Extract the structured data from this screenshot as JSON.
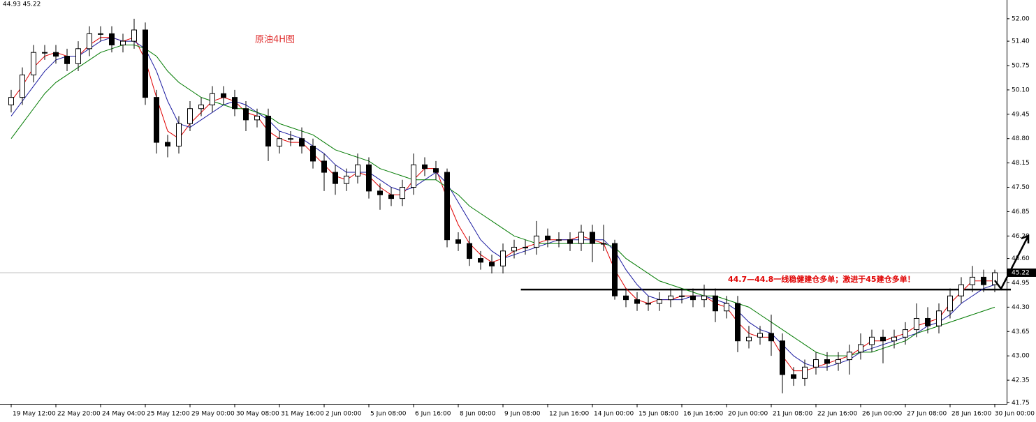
{
  "chart_data": {
    "type": "candlestick",
    "title": "原油4H图",
    "info": "44.93 45.22",
    "annotation": "44.7—44.8一线稳健建仓多单；激进于45建仓多单！",
    "xlim": [
      -1,
      89
    ],
    "ylim": [
      41.7,
      52.5
    ],
    "xticks": [
      {
        "value": 0,
        "label": "19 May 12:00"
      },
      {
        "value": 4,
        "label": "22 May 20:00"
      },
      {
        "value": 8,
        "label": "24 May 04:00"
      },
      {
        "value": 12,
        "label": "25 May 12:00"
      },
      {
        "value": 16,
        "label": "29 May 00:00"
      },
      {
        "value": 20,
        "label": "30 May 08:00"
      },
      {
        "value": 24,
        "label": "31 May 16:00"
      },
      {
        "value": 28,
        "label": "2 Jun 00:00"
      },
      {
        "value": 32,
        "label": "5 Jun 08:00"
      },
      {
        "value": 36,
        "label": "6 Jun 16:00"
      },
      {
        "value": 40,
        "label": "8 Jun 00:00"
      },
      {
        "value": 44,
        "label": "9 Jun 08:00"
      },
      {
        "value": 48,
        "label": "12 Jun 16:00"
      },
      {
        "value": 52,
        "label": "14 Jun 00:00"
      },
      {
        "value": 56,
        "label": "15 Jun 08:00"
      },
      {
        "value": 60,
        "label": "16 Jun 16:00"
      },
      {
        "value": 64,
        "label": "20 Jun 00:00"
      },
      {
        "value": 68,
        "label": "21 Jun 08:00"
      },
      {
        "value": 72,
        "label": "22 Jun 16:00"
      },
      {
        "value": 76,
        "label": "26 Jun 00:00"
      },
      {
        "value": 80,
        "label": "27 Jun 08:00"
      },
      {
        "value": 84,
        "label": "28 Jun 16:00"
      },
      {
        "value": 88,
        "label": "30 Jun 00:00"
      }
    ],
    "yticks": [
      {
        "value": 52,
        "label": "52.00"
      },
      {
        "value": 51.4,
        "label": "51.40"
      },
      {
        "value": 50.75,
        "label": "50.75"
      },
      {
        "value": 50.1,
        "label": "50.10"
      },
      {
        "value": 49.45,
        "label": "49.45"
      },
      {
        "value": 48.8,
        "label": "48.80"
      },
      {
        "value": 48.15,
        "label": "48.15"
      },
      {
        "value": 47.5,
        "label": "47.50"
      },
      {
        "value": 46.85,
        "label": "46.85"
      },
      {
        "value": 46.2,
        "label": "46.20"
      },
      {
        "value": 45.6,
        "label": "45.60"
      },
      {
        "value": 44.95,
        "label": "44.95"
      },
      {
        "value": 44.3,
        "label": "44.30"
      },
      {
        "value": 43.65,
        "label": "43.65"
      },
      {
        "value": 43,
        "label": "43.00"
      },
      {
        "value": 42.35,
        "label": "42.35"
      },
      {
        "value": 41.75,
        "label": "41.75"
      }
    ],
    "last_price": {
      "value": 45.22,
      "label": "45.22"
    },
    "support": {
      "level": 44.77,
      "from": 45.6
    },
    "up_color": "#ffffff",
    "down_color": "#000000",
    "open": [
      49.7,
      49.9,
      50.5,
      51.1,
      51.1,
      51.0,
      50.8,
      51.2,
      51.6,
      51.6,
      51.3,
      51.4,
      51.7,
      49.9,
      48.7,
      48.6,
      49.2,
      49.6,
      49.7,
      50.0,
      49.9,
      49.6,
      49.3,
      49.4,
      48.6,
      48.8,
      48.8,
      48.6,
      48.2,
      47.9,
      47.6,
      47.8,
      48.1,
      47.4,
      47.3,
      47.2,
      47.5,
      48.1,
      48.0,
      47.9,
      46.1,
      46.0,
      45.6,
      45.5,
      45.4,
      45.8,
      45.9,
      45.9,
      46.2,
      46.1,
      46.1,
      46.0,
      46.3,
      46.0,
      46.0,
      44.6,
      44.5,
      44.4,
      44.4,
      44.5,
      44.6,
      44.6,
      44.5,
      44.6,
      44.2,
      44.4,
      43.4,
      43.5,
      43.6,
      43.4,
      42.5,
      42.4,
      42.7,
      42.9,
      42.8,
      42.9,
      43.1,
      43.3,
      43.5,
      43.4,
      43.5,
      43.7,
      44.0,
      43.8,
      44.2,
      44.6,
      44.9,
      45.1,
      44.9
    ],
    "high": [
      50.1,
      50.7,
      51.3,
      51.3,
      51.3,
      51.2,
      51.4,
      51.8,
      51.8,
      51.8,
      51.6,
      52.0,
      51.9,
      50.1,
      48.9,
      49.4,
      49.8,
      49.9,
      50.2,
      50.2,
      50.1,
      49.8,
      49.6,
      49.6,
      49.0,
      49.0,
      49.1,
      48.8,
      48.4,
      48.1,
      48.0,
      48.4,
      48.3,
      47.6,
      47.5,
      47.7,
      48.4,
      48.3,
      48.2,
      48.0,
      46.3,
      46.2,
      45.8,
      45.7,
      46.0,
      46.1,
      46.1,
      46.6,
      46.4,
      46.3,
      46.3,
      46.5,
      46.5,
      46.5,
      46.1,
      44.8,
      44.7,
      44.6,
      44.7,
      44.8,
      44.8,
      44.8,
      44.9,
      44.8,
      44.6,
      44.6,
      43.8,
      43.8,
      44.1,
      43.6,
      42.7,
      42.9,
      43.1,
      43.1,
      43.1,
      43.3,
      43.6,
      43.7,
      43.7,
      43.7,
      43.9,
      44.4,
      44.3,
      44.4,
      44.8,
      45.1,
      45.4,
      45.3,
      45.3
    ],
    "low": [
      49.5,
      49.7,
      50.3,
      50.9,
      50.8,
      50.6,
      50.6,
      51.0,
      51.4,
      51.1,
      51.1,
      51.2,
      49.7,
      48.4,
      48.3,
      48.4,
      49.0,
      49.4,
      49.5,
      49.7,
      49.4,
      49.0,
      49.1,
      48.2,
      48.4,
      48.6,
      48.4,
      48.0,
      47.4,
      47.3,
      47.4,
      47.6,
      47.2,
      46.9,
      47.0,
      47.0,
      47.3,
      47.8,
      47.7,
      45.9,
      45.8,
      45.4,
      45.3,
      45.2,
      45.2,
      45.6,
      45.7,
      45.7,
      45.9,
      45.9,
      45.8,
      45.8,
      45.5,
      45.8,
      44.5,
      44.3,
      44.2,
      44.2,
      44.2,
      44.3,
      44.4,
      44.3,
      44.3,
      43.9,
      44.0,
      43.1,
      43.2,
      43.3,
      43.0,
      42.0,
      42.2,
      42.2,
      42.5,
      42.6,
      42.6,
      42.5,
      42.9,
      43.1,
      42.8,
      43.2,
      43.3,
      43.5,
      43.6,
      43.6,
      44.0,
      44.4,
      44.7,
      44.7,
      44.7
    ],
    "close": [
      49.9,
      50.5,
      51.1,
      51.1,
      51.0,
      50.8,
      51.2,
      51.6,
      51.6,
      51.3,
      51.4,
      51.7,
      49.9,
      48.7,
      48.6,
      49.2,
      49.6,
      49.7,
      50.0,
      49.9,
      49.6,
      49.3,
      49.4,
      48.6,
      48.8,
      48.8,
      48.6,
      48.2,
      47.9,
      47.6,
      47.8,
      48.1,
      47.4,
      47.3,
      47.2,
      47.5,
      48.1,
      48.0,
      47.9,
      46.1,
      46.0,
      45.6,
      45.5,
      45.4,
      45.8,
      45.9,
      45.9,
      46.2,
      46.1,
      46.1,
      46.0,
      46.3,
      46.0,
      46.0,
      44.6,
      44.5,
      44.4,
      44.4,
      44.5,
      44.6,
      44.6,
      44.5,
      44.6,
      44.2,
      44.4,
      43.4,
      43.5,
      43.6,
      43.4,
      42.5,
      42.4,
      42.7,
      42.9,
      42.8,
      42.9,
      43.1,
      43.3,
      43.5,
      43.4,
      43.5,
      43.7,
      44.0,
      43.8,
      44.2,
      44.6,
      44.9,
      45.1,
      44.9,
      45.22
    ],
    "ma_lines": [
      {
        "color": "#e00000",
        "values": [
          49.8,
          50.2,
          50.7,
          51.0,
          51.1,
          51.0,
          51.0,
          51.3,
          51.5,
          51.5,
          51.4,
          51.5,
          50.9,
          49.9,
          49.0,
          48.8,
          49.2,
          49.5,
          49.8,
          49.9,
          49.8,
          49.5,
          49.4,
          49.0,
          48.8,
          48.7,
          48.7,
          48.4,
          48.1,
          47.8,
          47.7,
          47.9,
          47.8,
          47.5,
          47.3,
          47.3,
          47.7,
          48.0,
          48.0,
          47.2,
          46.5,
          46.0,
          45.7,
          45.5,
          45.6,
          45.8,
          45.9,
          46.0,
          46.1,
          46.1,
          46.1,
          46.2,
          46.1,
          46.0,
          45.3,
          44.8,
          44.5,
          44.4,
          44.5,
          44.5,
          44.6,
          44.6,
          44.6,
          44.4,
          44.3,
          43.9,
          43.6,
          43.5,
          43.5,
          43.0,
          42.6,
          42.6,
          42.7,
          42.8,
          42.9,
          43.0,
          43.2,
          43.4,
          43.4,
          43.5,
          43.6,
          43.8,
          43.9,
          44.0,
          44.4,
          44.7,
          45.0,
          45.0,
          45.0
        ]
      },
      {
        "color": "#1a1aa0",
        "values": [
          49.4,
          49.8,
          50.2,
          50.6,
          50.9,
          51.0,
          51.0,
          51.2,
          51.4,
          51.5,
          51.4,
          51.4,
          51.2,
          50.6,
          49.8,
          49.2,
          49.1,
          49.3,
          49.5,
          49.7,
          49.8,
          49.7,
          49.5,
          49.3,
          49.0,
          48.9,
          48.8,
          48.6,
          48.4,
          48.1,
          47.9,
          47.9,
          47.9,
          47.7,
          47.5,
          47.4,
          47.5,
          47.7,
          47.9,
          47.6,
          47.1,
          46.6,
          46.1,
          45.8,
          45.6,
          45.7,
          45.8,
          45.9,
          46.0,
          46.1,
          46.1,
          46.1,
          46.1,
          46.1,
          45.8,
          45.3,
          44.9,
          44.6,
          44.5,
          44.5,
          44.5,
          44.6,
          44.6,
          44.5,
          44.4,
          44.2,
          43.9,
          43.7,
          43.6,
          43.3,
          43.0,
          42.8,
          42.7,
          42.7,
          42.8,
          42.9,
          43.1,
          43.2,
          43.3,
          43.4,
          43.5,
          43.6,
          43.8,
          43.9,
          44.1,
          44.4,
          44.6,
          44.8,
          44.9
        ]
      },
      {
        "color": "#007a00",
        "values": [
          48.8,
          49.2,
          49.6,
          50.0,
          50.3,
          50.5,
          50.7,
          50.9,
          51.1,
          51.2,
          51.3,
          51.3,
          51.2,
          51.0,
          50.6,
          50.3,
          50.1,
          49.9,
          49.8,
          49.7,
          49.6,
          49.6,
          49.5,
          49.4,
          49.2,
          49.1,
          49.0,
          48.9,
          48.7,
          48.5,
          48.4,
          48.3,
          48.2,
          48.0,
          47.9,
          47.8,
          47.7,
          47.7,
          47.7,
          47.5,
          47.3,
          47.0,
          46.8,
          46.6,
          46.4,
          46.2,
          46.1,
          46.0,
          46.0,
          46.0,
          46.0,
          46.0,
          46.0,
          46.0,
          45.9,
          45.6,
          45.4,
          45.2,
          45.0,
          44.9,
          44.8,
          44.7,
          44.6,
          44.6,
          44.5,
          44.4,
          44.3,
          44.1,
          43.9,
          43.7,
          43.5,
          43.3,
          43.1,
          43.0,
          43.0,
          43.0,
          43.1,
          43.1,
          43.2,
          43.3,
          43.4,
          43.6,
          43.7,
          43.8,
          43.9,
          44.0,
          44.1,
          44.2,
          44.3
        ]
      }
    ]
  }
}
